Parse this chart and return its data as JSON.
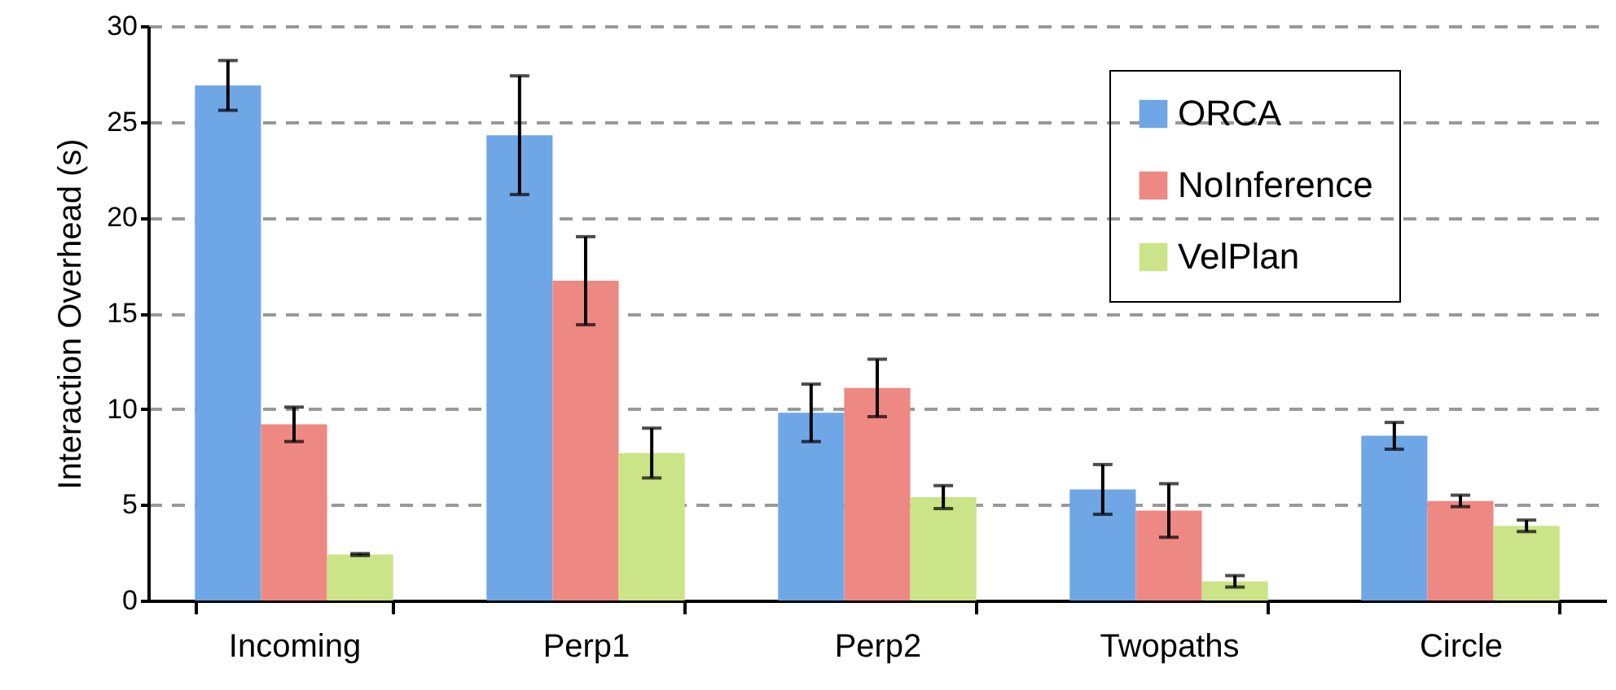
{
  "chart_data": {
    "type": "bar",
    "ylabel": "Interaction Overhead (s)",
    "categories": [
      "Incoming",
      "Perp1",
      "Perp2",
      "Twopaths",
      "Circle"
    ],
    "series": [
      {
        "name": "ORCA",
        "color": "#6fa6e6",
        "values": [
          26.9,
          24.3,
          9.8,
          5.8,
          8.6
        ],
        "errors": [
          1.3,
          3.1,
          1.5,
          1.3,
          0.7
        ]
      },
      {
        "name": "NoInference",
        "color": "#ee8882",
        "values": [
          9.2,
          16.7,
          11.1,
          4.7,
          5.2
        ],
        "errors": [
          0.9,
          2.3,
          1.5,
          1.4,
          0.3
        ]
      },
      {
        "name": "VelPlan",
        "color": "#cbe487",
        "values": [
          2.4,
          7.7,
          5.4,
          1.0,
          3.9
        ],
        "errors": [
          0.05,
          1.3,
          0.6,
          0.3,
          0.3
        ]
      }
    ],
    "ylim": [
      0,
      30
    ],
    "yticks": [
      0,
      5,
      10,
      15,
      20,
      25,
      30
    ],
    "grid": "y",
    "legend": "top right"
  }
}
